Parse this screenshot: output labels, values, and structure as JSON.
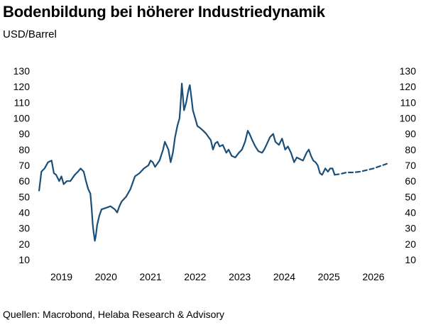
{
  "title": "Bodenbildung bei höherer Industriedynamik",
  "subtitle": "USD/Barrel",
  "source": "Quellen: Macrobond, Helaba Research & Advisory",
  "colors": {
    "line": "#1b4f7a",
    "text": "#000000",
    "background": "#ffffff"
  },
  "chart_data": {
    "type": "line",
    "title": "Bodenbildung bei höherer Industriedynamik",
    "ylabel": "USD/Barrel",
    "xlabel": "",
    "ylim": [
      10,
      130
    ],
    "yticks": [
      130,
      120,
      110,
      100,
      90,
      80,
      70,
      60,
      50,
      40,
      30,
      20,
      10
    ],
    "xticks": [
      "2019",
      "2020",
      "2021",
      "2022",
      "2023",
      "2024",
      "2025",
      "2026"
    ],
    "xlim": [
      2018.95,
      2026.85
    ],
    "grid": false,
    "legend": "none",
    "series": [
      {
        "style": "solid",
        "x": [
          2019.0,
          2019.05,
          2019.12,
          2019.2,
          2019.28,
          2019.33,
          2019.38,
          2019.45,
          2019.5,
          2019.55,
          2019.62,
          2019.7,
          2019.75,
          2019.8,
          2019.87,
          2019.93,
          2020.0,
          2020.05,
          2020.1,
          2020.15,
          2020.18,
          2020.2,
          2020.22,
          2020.25,
          2020.27,
          2020.3,
          2020.35,
          2020.4,
          2020.5,
          2020.6,
          2020.7,
          2020.75,
          2020.8,
          2020.85,
          2020.95,
          2021.05,
          2021.15,
          2021.25,
          2021.35,
          2021.45,
          2021.5,
          2021.55,
          2021.6,
          2021.7,
          2021.78,
          2021.82,
          2021.9,
          2021.95,
          2022.0,
          2022.05,
          2022.1,
          2022.15,
          2022.18,
          2022.2,
          2022.25,
          2022.3,
          2022.35,
          2022.38,
          2022.42,
          2022.45,
          2022.5,
          2022.55,
          2022.6,
          2022.68,
          2022.75,
          2022.8,
          2022.85,
          2022.9,
          2022.95,
          2023.0,
          2023.05,
          2023.12,
          2023.2,
          2023.25,
          2023.32,
          2023.4,
          2023.48,
          2023.55,
          2023.62,
          2023.68,
          2023.72,
          2023.78,
          2023.85,
          2023.92,
          2024.0,
          2024.05,
          2024.1,
          2024.18,
          2024.25,
          2024.3,
          2024.38,
          2024.45,
          2024.52,
          2024.58,
          2024.65,
          2024.72,
          2024.78,
          2024.85,
          2024.92,
          2025.0,
          2025.05,
          2025.1,
          2025.15,
          2025.2,
          2025.25,
          2025.3,
          2025.35,
          2025.42,
          2025.48,
          2025.53,
          2025.58,
          2025.63
        ],
        "y": [
          54,
          66,
          68,
          72,
          73,
          65,
          64,
          60,
          63,
          58,
          60,
          60,
          62,
          64,
          66,
          68,
          66,
          60,
          55,
          52,
          42,
          33,
          28,
          22,
          25,
          32,
          38,
          42,
          43,
          44,
          42,
          40,
          44,
          47,
          50,
          55,
          63,
          65,
          68,
          70,
          73,
          72,
          69,
          73,
          80,
          85,
          80,
          72,
          78,
          88,
          95,
          100,
          112,
          122,
          105,
          110,
          118,
          121,
          112,
          105,
          100,
          95,
          94,
          92,
          90,
          88,
          86,
          80,
          84,
          85,
          82,
          83,
          78,
          80,
          76,
          75,
          78,
          80,
          85,
          92,
          90,
          86,
          82,
          79,
          78,
          80,
          83,
          88,
          90,
          85,
          83,
          87,
          80,
          82,
          78,
          72,
          75,
          74,
          73,
          78,
          80,
          76,
          73,
          72,
          70,
          65,
          64,
          68,
          66,
          68,
          68,
          64
        ]
      },
      {
        "style": "dashed",
        "x": [
          2025.63,
          2025.75,
          2025.9,
          2026.05,
          2026.2,
          2026.35,
          2026.5,
          2026.65,
          2026.8
        ],
        "y": [
          64,
          64.5,
          65.5,
          65.5,
          66,
          67,
          68,
          69.5,
          71
        ]
      }
    ]
  }
}
